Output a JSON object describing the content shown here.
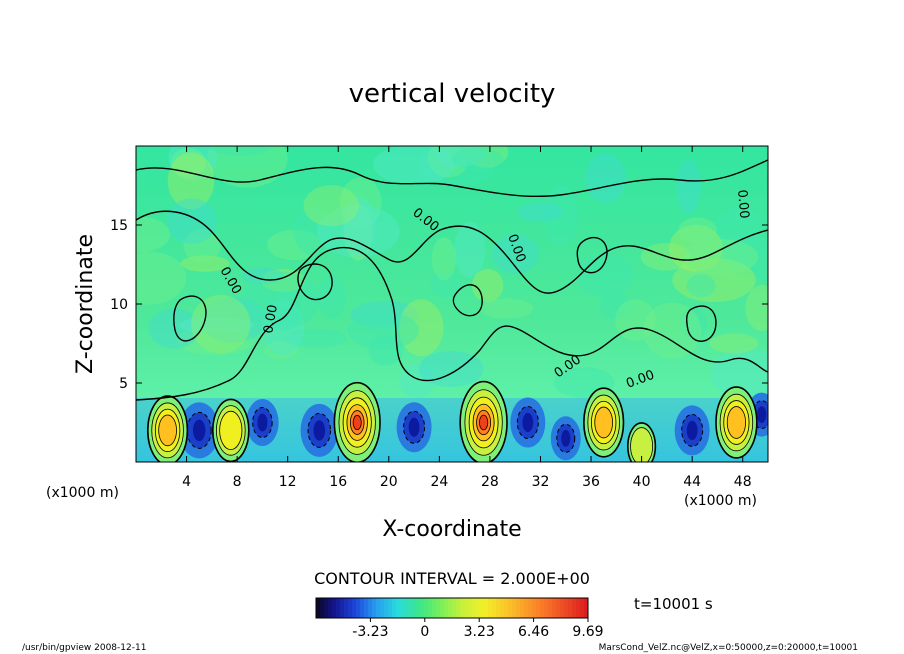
{
  "chart_data": {
    "type": "heatmap",
    "title": "vertical velocity",
    "xlabel": "X-coordinate",
    "ylabel": "Z-coordinate",
    "x_units": "(x1000 m)",
    "y_units": "(x1000 m)",
    "xlim": [
      0,
      50
    ],
    "ylim": [
      0,
      20
    ],
    "x_ticks": [
      4,
      8,
      12,
      16,
      20,
      24,
      28,
      32,
      36,
      40,
      44,
      48
    ],
    "y_ticks": [
      5,
      10,
      15
    ],
    "contour_interval_text": "CONTOUR INTERVAL = 2.000E+00",
    "contour_label": "0.00",
    "colorbar_ticks": [
      "-3.23",
      "0",
      "3.23",
      "6.46",
      "9.69"
    ],
    "colorbar_range": [
      -6.46,
      9.69
    ],
    "time_label": "t=10001 s",
    "grid": false,
    "updrafts": [
      {
        "x": 2.5,
        "z": 2.0,
        "w": 6.5
      },
      {
        "x": 7.5,
        "z": 2.0,
        "w": 5.0
      },
      {
        "x": 17.5,
        "z": 2.5,
        "w": 9.0
      },
      {
        "x": 27.5,
        "z": 2.5,
        "w": 9.5
      },
      {
        "x": 37.0,
        "z": 2.5,
        "w": 6.5
      },
      {
        "x": 40.0,
        "z": 1.0,
        "w": 1.5
      },
      {
        "x": 47.5,
        "z": 2.5,
        "w": 7.0
      }
    ],
    "downdrafts": [
      {
        "x": 5.0,
        "z": 2.0,
        "w": -4.0
      },
      {
        "x": 10.0,
        "z": 2.5,
        "w": -2.5
      },
      {
        "x": 14.5,
        "z": 2.0,
        "w": -3.5
      },
      {
        "x": 22.0,
        "z": 2.2,
        "w": -3.0
      },
      {
        "x": 31.0,
        "z": 2.5,
        "w": -3.0
      },
      {
        "x": 34.0,
        "z": 1.5,
        "w": -2.0
      },
      {
        "x": 44.0,
        "z": 2.0,
        "w": -3.0
      },
      {
        "x": 49.5,
        "z": 3.0,
        "w": -2.0
      }
    ]
  },
  "footer": {
    "program": "/usr/bin/gpview   2008-12-11",
    "source": "MarsCond_VelZ.nc@VelZ,x=0:50000,z=0:20000,t=10001"
  }
}
